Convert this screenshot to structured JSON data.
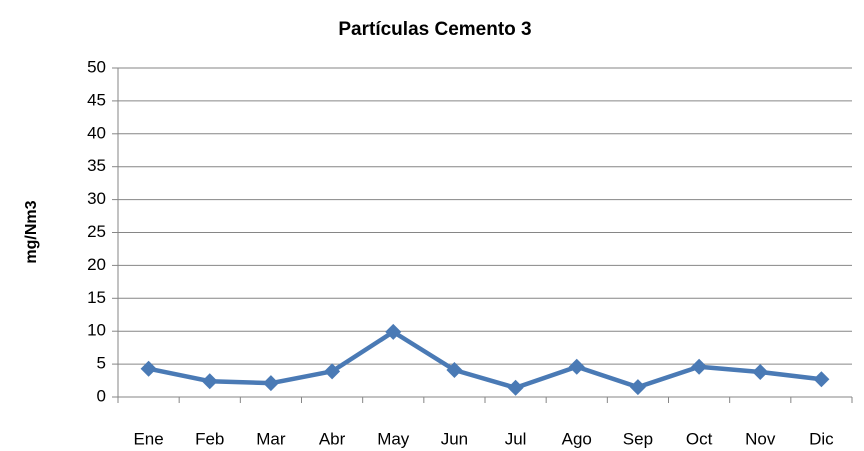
{
  "chart_data": {
    "type": "line",
    "title": "Partículas Cemento 3",
    "y_label": "mg/Nm3",
    "categories": [
      "Ene",
      "Feb",
      "Mar",
      "Abr",
      "May",
      "Jun",
      "Jul",
      "Ago",
      "Sep",
      "Oct",
      "Nov",
      "Dic"
    ],
    "values": [
      4.3,
      2.4,
      2.1,
      3.9,
      9.9,
      4.1,
      1.4,
      4.6,
      1.5,
      4.6,
      3.8,
      2.7
    ],
    "color": "#4a7ab5",
    "ylim": [
      0,
      50
    ],
    "yticks": [
      0,
      5,
      10,
      15,
      20,
      25,
      30,
      35,
      40,
      45,
      50
    ],
    "grid": true
  }
}
